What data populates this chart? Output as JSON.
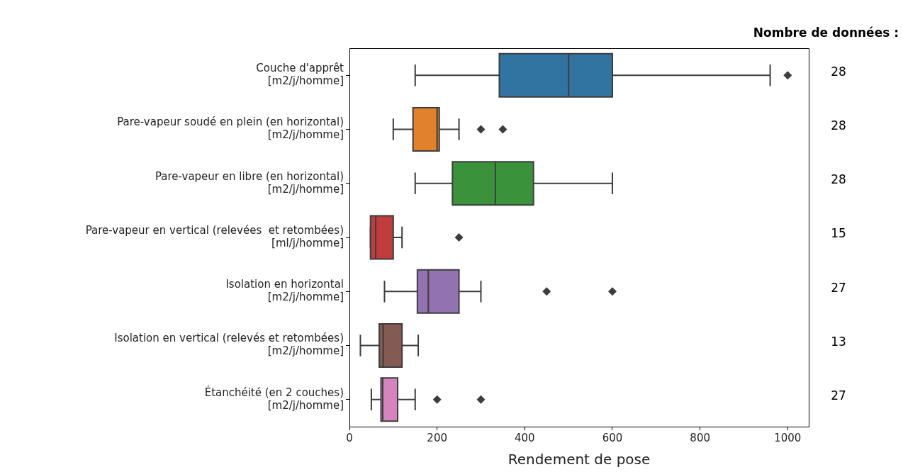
{
  "chart_data": {
    "type": "box",
    "orientation": "horizontal",
    "xlabel": "Rendement de pose",
    "marker": "diamond",
    "categories": [
      "Couche d'apprêt\n[m2/j/homme]",
      "Pare-vapeur soudé en plein (en horizontal)\n[m2/j/homme]",
      "Pare-vapeur en libre (en horizontal)\n[m2/j/homme]",
      "Pare-vapeur en vertical (relevées  et retombées)\n[ml/j/homme]",
      "Isolation en horizontal\n[m2/j/homme]",
      "Isolation en vertical (relevés et retombées)\n[m2/j/homme]",
      "Étanchéité (en 2 couches)\n[m2/j/homme]"
    ],
    "colors": [
      "#3274a1",
      "#e1812c",
      "#3a923a",
      "#c03d3e",
      "#9372b2",
      "#845b53",
      "#d684bd"
    ],
    "boxes": [
      {
        "low": 150,
        "q1": 342,
        "median": 500,
        "q3": 600,
        "high": 960,
        "outliers": [
          1000
        ]
      },
      {
        "low": 100,
        "q1": 145,
        "median": 200,
        "q3": 205,
        "high": 250,
        "outliers": [
          300,
          350
        ]
      },
      {
        "low": 150,
        "q1": 235,
        "median": 333,
        "q3": 420,
        "high": 600
      },
      {
        "low": 48,
        "q1": 48,
        "median": 60,
        "q3": 100,
        "high": 120,
        "outliers": [
          250
        ]
      },
      {
        "low": 80,
        "q1": 155,
        "median": 180,
        "q3": 250,
        "high": 300,
        "outliers": [
          450,
          600
        ]
      },
      {
        "low": 25,
        "q1": 68,
        "median": 77,
        "q3": 120,
        "high": 157
      },
      {
        "low": 50,
        "q1": 72,
        "median": 76,
        "q3": 110,
        "high": 150,
        "outliers": [
          200,
          300
        ]
      }
    ],
    "xlim": [
      0,
      1048
    ],
    "xticks": [
      0,
      200,
      400,
      600,
      800,
      1000
    ],
    "annotations": [
      "Nombre de données :",
      "28",
      "28",
      "28",
      "15",
      "27",
      "13",
      "27"
    ]
  }
}
